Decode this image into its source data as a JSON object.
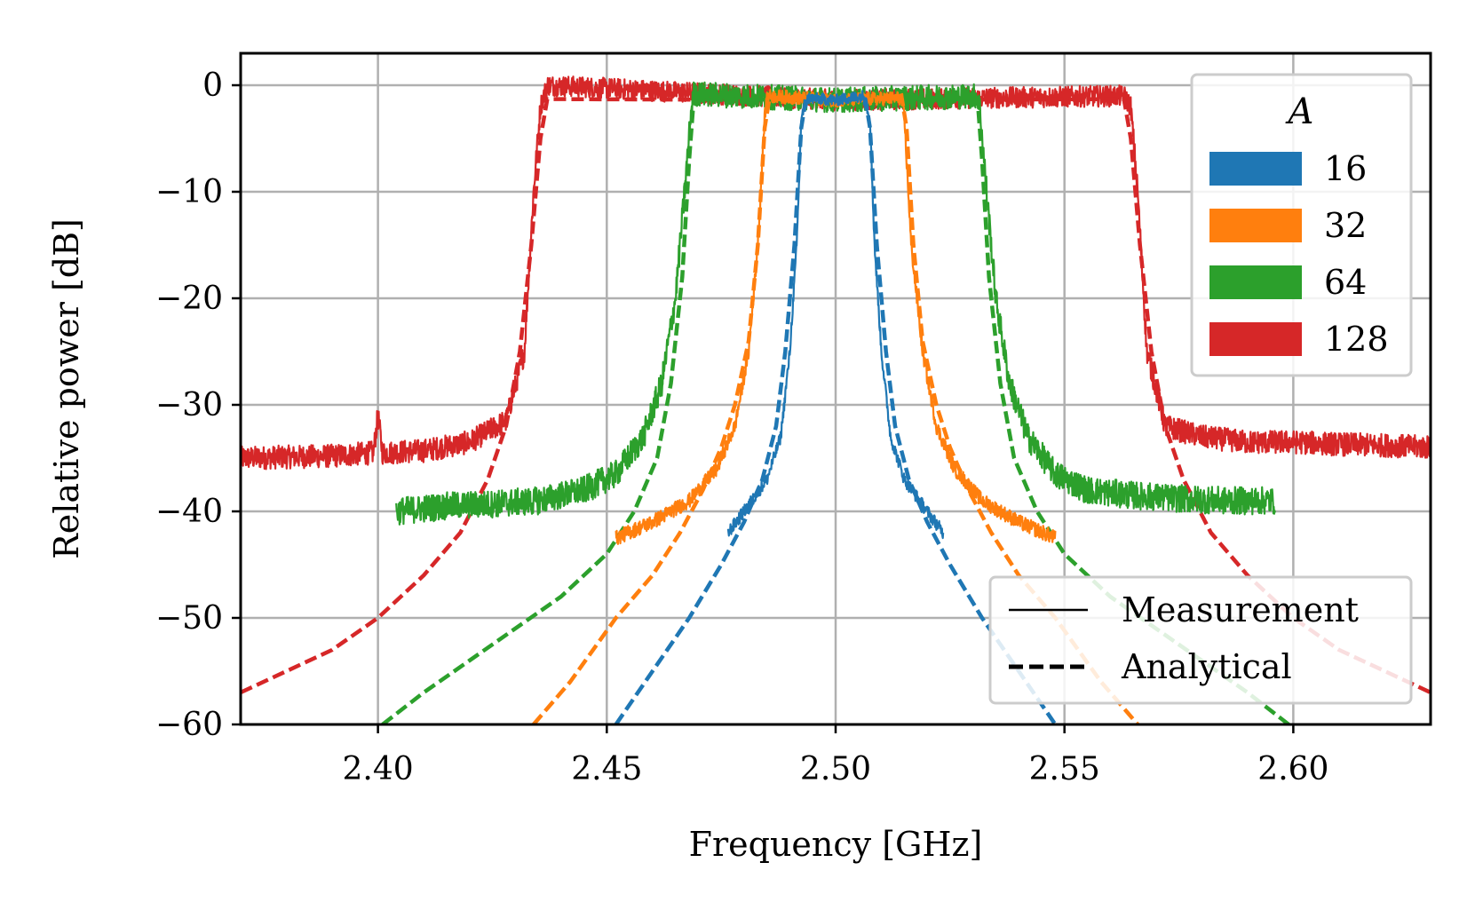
{
  "chart_data": {
    "type": "line",
    "xlabel": "Frequency [GHz]",
    "ylabel": "Relative power [dB]",
    "xlim": [
      2.37,
      2.63
    ],
    "ylim": [
      -60,
      3
    ],
    "xticks": [
      2.4,
      2.45,
      2.5,
      2.55,
      2.6
    ],
    "xtick_labels": [
      "2.40",
      "2.45",
      "2.50",
      "2.55",
      "2.60"
    ],
    "yticks": [
      0,
      -10,
      -20,
      -30,
      -40,
      -50,
      -60
    ],
    "ytick_labels": [
      "0",
      "−10",
      "−20",
      "−30",
      "−40",
      "−50",
      "−60"
    ],
    "grid": true,
    "color_legend": {
      "title": "A",
      "placement": "upper-right",
      "entries": [
        {
          "label": "16",
          "color": "#1f77b4"
        },
        {
          "label": "32",
          "color": "#ff7f0e"
        },
        {
          "label": "64",
          "color": "#2ca02c"
        },
        {
          "label": "128",
          "color": "#d62728"
        }
      ]
    },
    "style_legend": {
      "placement": "lower-right",
      "entries": [
        {
          "label": "Measurement",
          "style": "solid"
        },
        {
          "label": "Analytical",
          "style": "dashed"
        }
      ]
    },
    "series": [
      {
        "name": "16 Measurement",
        "A": "16",
        "kind": "measurement",
        "color": "#1f77b4",
        "noise": 0.6,
        "x": [
          2.4765,
          2.48,
          2.485,
          2.488,
          2.49,
          2.4915,
          2.4925,
          2.494,
          2.5,
          2.506,
          2.5075,
          2.5085,
          2.51,
          2.512,
          2.515,
          2.52,
          2.5235
        ],
        "y": [
          -42,
          -40,
          -37,
          -33,
          -25,
          -15,
          -3,
          -1.2,
          -1.4,
          -1.0,
          -3,
          -15,
          -25,
          -33,
          -37,
          -40,
          -42
        ]
      },
      {
        "name": "16 Analytical",
        "A": "16",
        "kind": "analytical",
        "color": "#1f77b4",
        "noise": 0,
        "x": [
          2.452,
          2.46,
          2.468,
          2.475,
          2.48,
          2.484,
          2.487,
          2.489,
          2.491,
          2.4925,
          2.4935,
          2.5,
          2.5065,
          2.5075,
          2.509,
          2.511,
          2.513,
          2.516,
          2.52,
          2.525,
          2.532,
          2.54,
          2.548
        ],
        "y": [
          -60,
          -55,
          -50,
          -45,
          -41,
          -37,
          -32,
          -25,
          -15,
          -4,
          -1.3,
          -1.4,
          -1.3,
          -4,
          -15,
          -25,
          -32,
          -37,
          -41,
          -45,
          -50,
          -55,
          -60
        ]
      },
      {
        "name": "32 Measurement",
        "A": "32",
        "kind": "measurement",
        "color": "#ff7f0e",
        "noise": 0.7,
        "x": [
          2.452,
          2.46,
          2.468,
          2.474,
          2.478,
          2.481,
          2.483,
          2.4845,
          2.485,
          2.5,
          2.5145,
          2.515,
          2.5165,
          2.519,
          2.522,
          2.526,
          2.532,
          2.54,
          2.548
        ],
        "y": [
          -42.5,
          -41,
          -39,
          -36,
          -32,
          -25,
          -15,
          -3,
          -1.0,
          -1.4,
          -1.2,
          -3,
          -15,
          -25,
          -32,
          -36,
          -39,
          -41,
          -42.5
        ]
      },
      {
        "name": "32 Analytical",
        "A": "32",
        "kind": "analytical",
        "color": "#ff7f0e",
        "noise": 0,
        "x": [
          2.434,
          2.442,
          2.452,
          2.46,
          2.466,
          2.471,
          2.475,
          2.478,
          2.481,
          2.483,
          2.4845,
          2.4855,
          2.5,
          2.5145,
          2.5155,
          2.517,
          2.519,
          2.522,
          2.525,
          2.529,
          2.534,
          2.54,
          2.548,
          2.558,
          2.566
        ],
        "y": [
          -60,
          -56,
          -50,
          -46,
          -42,
          -38,
          -34,
          -30,
          -24,
          -15,
          -4,
          -1.3,
          -1.4,
          -1.3,
          -4,
          -15,
          -24,
          -30,
          -34,
          -38,
          -42,
          -46,
          -50,
          -56,
          -60
        ]
      },
      {
        "name": "64 Measurement",
        "A": "64",
        "kind": "measurement",
        "color": "#2ca02c",
        "noise": 1.3,
        "x": [
          2.404,
          2.415,
          2.425,
          2.435,
          2.445,
          2.452,
          2.458,
          2.462,
          2.465,
          2.467,
          2.4685,
          2.469,
          2.5,
          2.531,
          2.5315,
          2.533,
          2.535,
          2.538,
          2.542,
          2.548,
          2.555,
          2.565,
          2.575,
          2.585,
          2.596
        ],
        "y": [
          -40,
          -39.5,
          -39.3,
          -39,
          -38,
          -36.5,
          -33,
          -28,
          -20,
          -10,
          -2,
          -0.8,
          -1.4,
          -1.0,
          -2,
          -10,
          -20,
          -28,
          -33,
          -36.5,
          -38,
          -38.5,
          -38.8,
          -39,
          -39
        ]
      },
      {
        "name": "64 Analytical",
        "A": "64",
        "kind": "analytical",
        "color": "#2ca02c",
        "noise": 0,
        "x": [
          2.401,
          2.41,
          2.42,
          2.43,
          2.44,
          2.45,
          2.456,
          2.461,
          2.464,
          2.4665,
          2.468,
          2.469,
          2.5,
          2.531,
          2.532,
          2.5335,
          2.536,
          2.539,
          2.544,
          2.55,
          2.56,
          2.57,
          2.58,
          2.59,
          2.599
        ],
        "y": [
          -60,
          -57,
          -54,
          -51,
          -48,
          -44,
          -40,
          -35,
          -28,
          -18,
          -7,
          -1.3,
          -1.4,
          -1.3,
          -7,
          -18,
          -28,
          -35,
          -40,
          -44,
          -48,
          -51,
          -54,
          -57,
          -60
        ]
      },
      {
        "name": "128 Measurement",
        "A": "128",
        "kind": "measurement",
        "color": "#d62728",
        "noise": 1.1,
        "x": [
          2.37,
          2.39,
          2.399,
          2.4,
          2.401,
          2.41,
          2.42,
          2.428,
          2.432,
          2.434,
          2.4355,
          2.437,
          2.5,
          2.563,
          2.5645,
          2.566,
          2.568,
          2.572,
          2.58,
          2.59,
          2.6,
          2.61,
          2.62,
          2.63
        ],
        "y": [
          -35,
          -34.8,
          -34.5,
          -31,
          -34.5,
          -34.3,
          -33.5,
          -31.5,
          -25,
          -10,
          -2,
          0,
          -1.4,
          -1.0,
          -2,
          -10,
          -25,
          -32,
          -33,
          -33.5,
          -33.5,
          -33.7,
          -33.8,
          -34
        ]
      },
      {
        "name": "128 Analytical",
        "A": "128",
        "kind": "analytical",
        "color": "#d62728",
        "noise": 0,
        "x": [
          2.37,
          2.38,
          2.39,
          2.4,
          2.41,
          2.418,
          2.424,
          2.428,
          2.431,
          2.4335,
          2.4355,
          2.437,
          2.5,
          2.563,
          2.5645,
          2.5665,
          2.569,
          2.572,
          2.576,
          2.582,
          2.59,
          2.6,
          2.61,
          2.62,
          2.63
        ],
        "y": [
          -57,
          -55,
          -53,
          -50,
          -46,
          -42,
          -37,
          -32,
          -25,
          -15,
          -5,
          -1.3,
          -1.4,
          -1.3,
          -5,
          -15,
          -25,
          -32,
          -37,
          -42,
          -46,
          -50,
          -53,
          -55,
          -57
        ]
      }
    ]
  }
}
